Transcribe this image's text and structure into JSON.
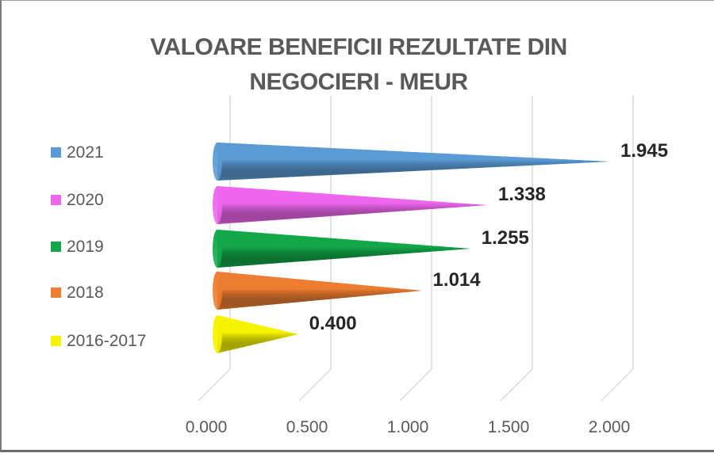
{
  "chart_data": {
    "type": "bar",
    "style": "3d-cone-horizontal",
    "title_lines": [
      "VALOARE BENEFICII REZULTATE DIN",
      "NEGOCIERI - MEUR"
    ],
    "categories": [
      "2016-2017",
      "2018",
      "2019",
      "2020",
      "2021"
    ],
    "values": [
      0.4,
      1.014,
      1.255,
      1.338,
      1.945
    ],
    "value_labels": [
      "0.400",
      "1.014",
      "1.255",
      "1.338",
      "1.945"
    ],
    "colors": [
      "#f6f300",
      "#ed7d31",
      "#12a84a",
      "#ee66ee",
      "#5b9bd5"
    ],
    "xlim": [
      0,
      2
    ],
    "xticks": [
      "0.000",
      "0.500",
      "1.000",
      "1.500",
      "2.000"
    ],
    "legend": {
      "position": "left",
      "order": [
        "2021",
        "2020",
        "2019",
        "2018",
        "2016-2017"
      ]
    },
    "grid": true
  }
}
